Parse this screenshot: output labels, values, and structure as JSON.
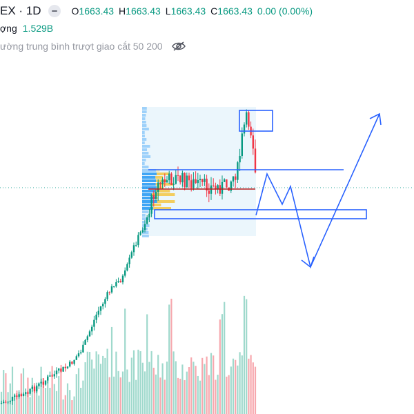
{
  "header": {
    "symbol": "EX · 1D",
    "ohlc": {
      "o_label": "O",
      "o_value": "1663.43",
      "h_label": "H",
      "h_value": "1663.43",
      "l_label": "L",
      "l_value": "1663.43",
      "c_label": "C",
      "c_value": "1663.43",
      "change": "0.00 (0.00%)"
    }
  },
  "volume": {
    "label": "ợng",
    "value": "1.529B"
  },
  "indicator": {
    "label": "ường trung bình trượt giao cắt 50 200"
  },
  "colors": {
    "up": "#089981",
    "down": "#f23645",
    "drawing": "#2962ff",
    "profile_up": "#2196f3",
    "profile_poc": "#f5c542",
    "profile_bg": "#e3f2fd",
    "hline": "#26a69a"
  },
  "icons": {
    "badge": "minus-badge-icon",
    "visibility": "eye-off-icon"
  }
}
